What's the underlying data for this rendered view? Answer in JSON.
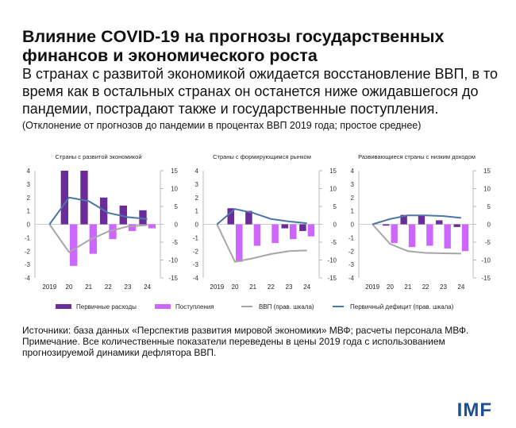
{
  "header": {
    "title": "Влияние COVID-19 на прогнозы государственных финансов и экономического роста",
    "subtitle": "В странах с развитой экономикой ожидается восстановление ВВП, в то время как в остальных странах он останется ниже ожидавшегося до пандемии, пострадают также и государственные поступления.",
    "note": "(Отклонение от прогнозов до пандемии в процентах ВВП 2019 года; простое среднее)"
  },
  "legend": [
    {
      "label": "Первичные расходы",
      "color": "#6a2c99",
      "kind": "bar"
    },
    {
      "label": "Поступления",
      "color": "#cc66ff",
      "kind": "bar"
    },
    {
      "label": "ВВП (прав. шкала)",
      "color": "#a6a6a6",
      "kind": "line"
    },
    {
      "label": "Первичный дефицит (прав. шкала)",
      "color": "#4a77a8",
      "kind": "line"
    }
  ],
  "chart_data": [
    {
      "type": "bar",
      "title": "Страны с развитой экономикой",
      "categories": [
        "2019",
        "20",
        "21",
        "22",
        "23",
        "24"
      ],
      "ylim": [
        -4,
        4
      ],
      "y2lim": [
        -15,
        15
      ],
      "yticks": [
        "4",
        "3",
        "2",
        "1",
        "0",
        "-1",
        "-2",
        "-3",
        "-4"
      ],
      "y2ticks": [
        "15",
        "10",
        "5",
        "0",
        "-5",
        "-10",
        "-15"
      ],
      "series": [
        {
          "name": "Первичные расходы",
          "axis": "left",
          "values": [
            null,
            4,
            4,
            2.0,
            1.4,
            1.05
          ]
        },
        {
          "name": "Поступления",
          "axis": "left",
          "values": [
            null,
            -3.1,
            -2.2,
            -1.1,
            -0.5,
            -0.3
          ]
        },
        {
          "name": "ВВП (прав. шкала)",
          "axis": "right",
          "values": [
            0,
            -7.8,
            -4.5,
            -2.0,
            -0.6,
            -0.2
          ]
        },
        {
          "name": "Первичный дефицит (прав. шкала)",
          "axis": "right",
          "values": [
            0,
            7.5,
            6.5,
            3.2,
            2.0,
            1.5
          ]
        }
      ]
    },
    {
      "type": "bar",
      "title": "Страны с формирующимся рынком",
      "categories": [
        "2019",
        "20",
        "21",
        "22",
        "23",
        "24"
      ],
      "ylim": [
        -4,
        4
      ],
      "y2lim": [
        -15,
        15
      ],
      "yticks": [
        "4",
        "3",
        "2",
        "1",
        "0",
        "-1",
        "-2",
        "-3",
        "-4"
      ],
      "y2ticks": [
        "15",
        "10",
        "5",
        "0",
        "-5",
        "-10",
        "-15"
      ],
      "series": [
        {
          "name": "Первичные расходы",
          "axis": "left",
          "values": [
            null,
            1.2,
            1.0,
            0,
            -0.3,
            -0.5
          ]
        },
        {
          "name": "Поступления",
          "axis": "left",
          "values": [
            null,
            -2.8,
            -1.6,
            -1.4,
            -1.1,
            -0.9
          ]
        },
        {
          "name": "ВВП (прав. шкала)",
          "axis": "right",
          "values": [
            0,
            -10.5,
            -9.5,
            -8.3,
            -7.5,
            -7.3
          ]
        },
        {
          "name": "Первичный дефицит (прав. шкала)",
          "axis": "right",
          "values": [
            0,
            4.3,
            3.2,
            1.5,
            0.8,
            0.3
          ]
        }
      ]
    },
    {
      "type": "bar",
      "title": "Развивающиеся страны с низким доходом",
      "categories": [
        "2019",
        "20",
        "21",
        "22",
        "23",
        "24"
      ],
      "ylim": [
        -4,
        4
      ],
      "y2lim": [
        -15,
        15
      ],
      "yticks": [
        "4",
        "3",
        "2",
        "1",
        "0",
        "-1",
        "-2",
        "-3",
        "-4"
      ],
      "y2ticks": [
        "15",
        "10",
        "5",
        "0",
        "-5",
        "-10",
        "-15"
      ],
      "series": [
        {
          "name": "Первичные расходы",
          "axis": "left",
          "values": [
            null,
            -0.1,
            0.7,
            0.7,
            0.3,
            -0.2
          ]
        },
        {
          "name": "Поступления",
          "axis": "left",
          "values": [
            null,
            -1.4,
            -1.7,
            -1.6,
            -1.8,
            -2.0
          ]
        },
        {
          "name": "ВВП (прав. шкала)",
          "axis": "right",
          "values": [
            0,
            -5.5,
            -7.5,
            -8.0,
            -8.1,
            -8.2
          ]
        },
        {
          "name": "Первичный дефицит (прав. шкала)",
          "axis": "right",
          "values": [
            0,
            1.5,
            2.5,
            2.5,
            2.3,
            1.8
          ]
        }
      ]
    }
  ],
  "footer": {
    "sources": "Источники: база данных «Перспектив развития мировой экономики» МВФ; расчеты персонала МВФ.",
    "remark": "Примечание. Все количественные показатели переведены в цены 2019 года с использованием прогнозируемой динамики дефлятора ВВП.",
    "logo": "IMF"
  }
}
